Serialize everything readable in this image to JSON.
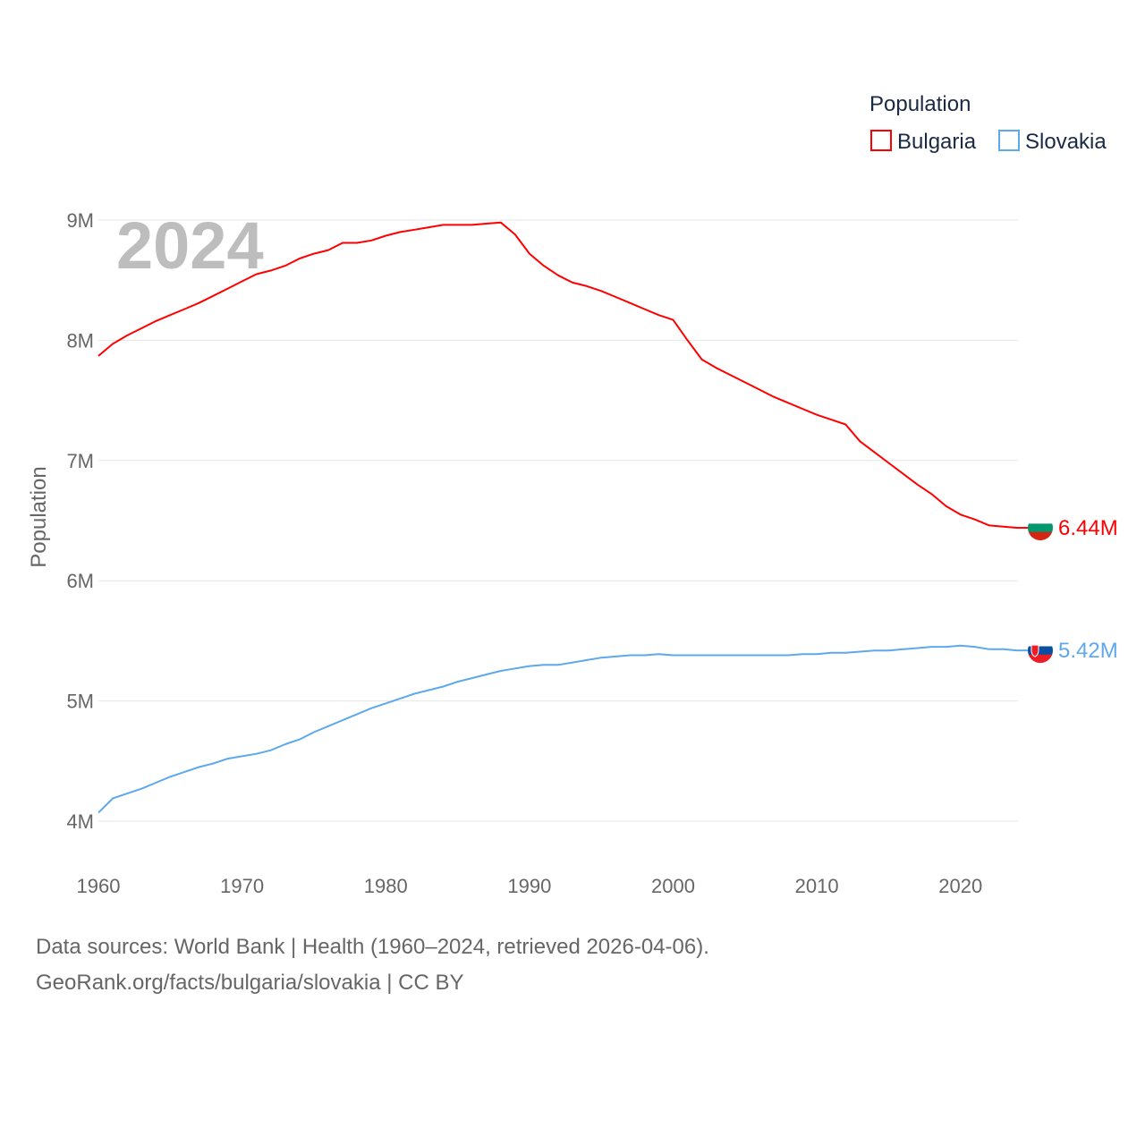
{
  "chart_data": {
    "type": "line",
    "title": "",
    "watermark_year": "2024",
    "xlabel": "",
    "ylabel": "Population",
    "xlim": [
      1960,
      2024
    ],
    "ylim": [
      4,
      9
    ],
    "x_ticks": [
      "1960",
      "1970",
      "1980",
      "1990",
      "2000",
      "2010",
      "2020"
    ],
    "y_ticks": [
      {
        "v": 9,
        "label": "9M"
      },
      {
        "v": 8,
        "label": "8M"
      },
      {
        "v": 7,
        "label": "7M"
      },
      {
        "v": 6,
        "label": "6M"
      },
      {
        "v": 5,
        "label": "5M"
      },
      {
        "v": 4,
        "label": "4M"
      }
    ],
    "grid": true,
    "legend": {
      "title": "Population",
      "placement": "top-right"
    },
    "unit": "millions",
    "x_start": 1960,
    "series": [
      {
        "name": "Bulgaria",
        "color": "#ff0000",
        "end_label": "6.44M",
        "values": [
          7.87,
          7.97,
          8.04,
          8.1,
          8.16,
          8.21,
          8.26,
          8.31,
          8.37,
          8.43,
          8.49,
          8.55,
          8.58,
          8.62,
          8.68,
          8.72,
          8.75,
          8.81,
          8.81,
          8.83,
          8.87,
          8.9,
          8.92,
          8.94,
          8.96,
          8.96,
          8.96,
          8.97,
          8.98,
          8.88,
          8.72,
          8.62,
          8.54,
          8.48,
          8.45,
          8.41,
          8.36,
          8.31,
          8.26,
          8.21,
          8.17,
          8.0,
          7.84,
          7.77,
          7.71,
          7.65,
          7.59,
          7.53,
          7.48,
          7.43,
          7.38,
          7.34,
          7.3,
          7.16,
          7.07,
          6.98,
          6.89,
          6.8,
          6.72,
          6.62,
          6.55,
          6.51,
          6.46,
          6.45,
          6.44
        ]
      },
      {
        "name": "Slovakia",
        "color": "#5ea8ee",
        "end_label": "5.42M",
        "values": [
          4.07,
          4.19,
          4.23,
          4.27,
          4.32,
          4.37,
          4.41,
          4.45,
          4.48,
          4.52,
          4.54,
          4.56,
          4.59,
          4.64,
          4.68,
          4.74,
          4.79,
          4.84,
          4.89,
          4.94,
          4.98,
          5.02,
          5.06,
          5.09,
          5.12,
          5.16,
          5.19,
          5.22,
          5.25,
          5.27,
          5.29,
          5.3,
          5.3,
          5.32,
          5.34,
          5.36,
          5.37,
          5.38,
          5.38,
          5.39,
          5.38,
          5.38,
          5.38,
          5.38,
          5.38,
          5.38,
          5.38,
          5.38,
          5.38,
          5.39,
          5.39,
          5.4,
          5.4,
          5.41,
          5.42,
          5.42,
          5.43,
          5.44,
          5.45,
          5.45,
          5.46,
          5.45,
          5.43,
          5.43,
          5.42
        ]
      }
    ]
  },
  "footer": {
    "line1": "Data sources: World Bank | Health (1960–2024, retrieved 2026-04-06).",
    "line2": "GeoRank.org/facts/bulgaria/slovakia | CC BY"
  }
}
